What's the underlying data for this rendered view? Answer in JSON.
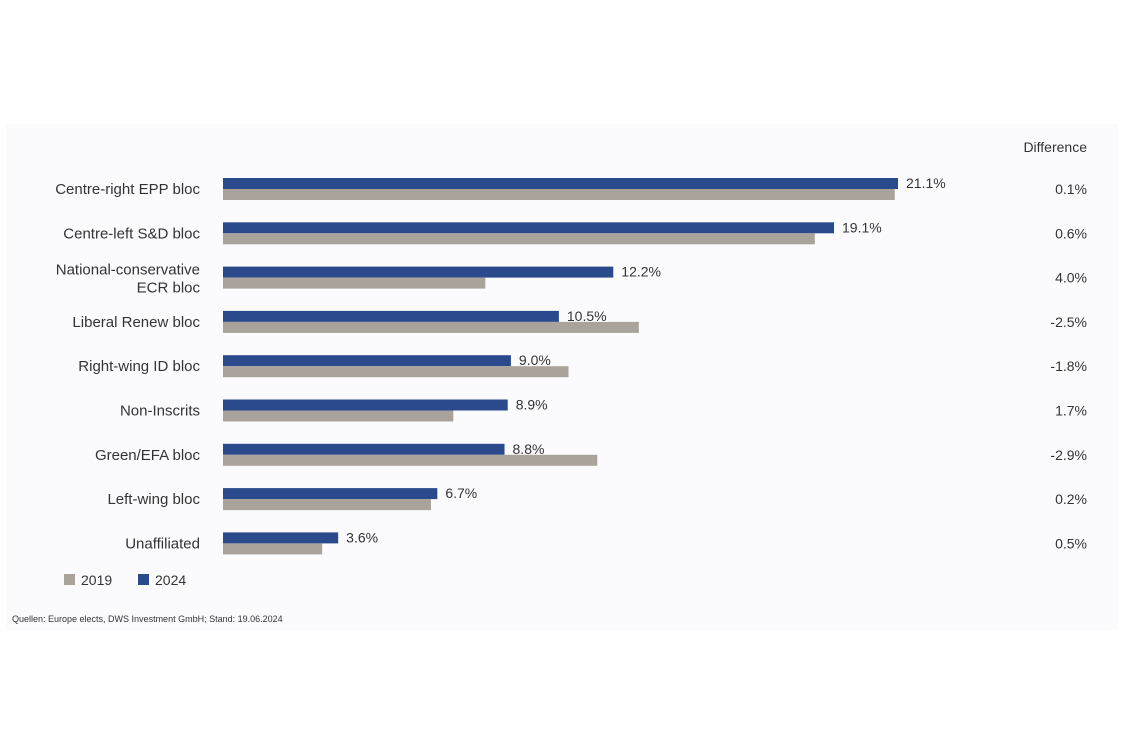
{
  "chart_data": {
    "type": "bar",
    "orientation": "horizontal",
    "categories": [
      [
        "Centre-right EPP bloc"
      ],
      [
        "Centre-left S&D bloc"
      ],
      [
        "National-conservative",
        "ECR bloc"
      ],
      [
        "Liberal Renew bloc"
      ],
      [
        "Right-wing ID bloc"
      ],
      [
        "Non-Inscrits"
      ],
      [
        "Green/EFA bloc"
      ],
      [
        "Left-wing bloc"
      ],
      [
        "Unaffiliated"
      ]
    ],
    "series": [
      {
        "name": "2024",
        "color": "#2b4a8b",
        "values": [
          21.1,
          19.1,
          12.2,
          10.5,
          9.0,
          8.9,
          8.8,
          6.7,
          3.6
        ],
        "labels": [
          "21.1%",
          "19.1%",
          "12.2%",
          "10.5%",
          "9.0%",
          "8.9%",
          "8.8%",
          "6.7%",
          "3.6%"
        ]
      },
      {
        "name": "2019",
        "color": "#aaa39c",
        "values": [
          21.0,
          18.5,
          8.2,
          13.0,
          10.8,
          7.2,
          11.7,
          6.5,
          3.1
        ]
      }
    ],
    "difference_header": "Difference",
    "difference": [
      "0.1%",
      "0.6%",
      "4.0%",
      "-2.5%",
      "-1.8%",
      "1.7%",
      "-2.9%",
      "0.2%",
      "0.5%"
    ],
    "legend": [
      {
        "label": "2019",
        "color": "#aaa39c"
      },
      {
        "label": "2024",
        "color": "#2b4a8b"
      }
    ],
    "legend_position": "bottom-left",
    "xlim": [
      0,
      21.1
    ],
    "grid": false,
    "source": "Quellen: Europe elects, DWS Investment GmbH; Stand: 19.06.2024"
  }
}
